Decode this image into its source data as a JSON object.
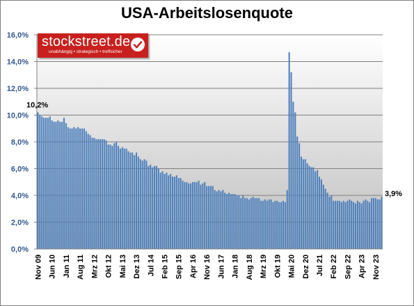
{
  "chart_data": {
    "type": "bar",
    "title": "USA-Arbeitslosenquote",
    "xlabel": "",
    "ylabel": "",
    "ylim": [
      0,
      16
    ],
    "y_ticks": [
      "0,0%",
      "2,0%",
      "4,0%",
      "6,0%",
      "8,0%",
      "10,0%",
      "12,0%",
      "14,0%",
      "16,0%"
    ],
    "grid": true,
    "legend": "none",
    "bar_color": "#4f81bd",
    "x_tick_labels": [
      "Nov 09",
      "Jun 10",
      "Jan 11",
      "Aug 11",
      "Mrz 12",
      "Okt 12",
      "Mai 13",
      "Dez 13",
      "Jul 14",
      "Feb 15",
      "Sep 15",
      "Apr 16",
      "Nov 16",
      "Jun 17",
      "Jan 18",
      "Aug 18",
      "Mrz 19",
      "Okt 19",
      "Mai 20",
      "Dez 20",
      "Jul 21",
      "Feb 22",
      "Sep 22",
      "Apr 23",
      "Nov 23"
    ],
    "series": [
      {
        "start": "2009-11",
        "values": [
          10.2,
          10.0,
          9.9,
          9.8,
          9.8,
          9.8,
          9.9,
          9.6,
          9.5,
          9.5,
          9.6,
          9.5,
          9.5,
          9.8,
          9.4,
          9.1,
          9.0,
          9.0,
          9.1,
          9.0,
          9.1,
          9.0,
          9.0,
          9.0,
          8.8,
          8.6,
          8.5,
          8.3,
          8.3,
          8.2,
          8.2,
          8.2,
          8.2,
          8.2,
          8.1,
          7.8,
          7.8,
          7.7,
          7.9,
          8.0,
          7.7,
          7.5,
          7.6,
          7.5,
          7.5,
          7.3,
          7.2,
          7.2,
          7.0,
          7.2,
          6.9,
          6.7,
          6.6,
          6.7,
          6.6,
          6.2,
          6.3,
          6.1,
          6.2,
          6.2,
          6.0,
          5.7,
          5.8,
          5.6,
          5.7,
          5.5,
          5.6,
          5.4,
          5.4,
          5.5,
          5.3,
          5.3,
          5.1,
          5.0,
          5.0,
          4.9,
          4.9,
          5.0,
          5.0,
          5.0,
          5.1,
          4.8,
          4.9,
          5.0,
          4.7,
          4.7,
          4.7,
          4.7,
          4.4,
          4.3,
          4.4,
          4.3,
          4.4,
          4.2,
          4.1,
          4.2,
          4.1,
          4.1,
          4.1,
          4.0,
          4.0,
          3.8,
          4.0,
          3.8,
          3.8,
          3.7,
          3.8,
          3.9,
          3.8,
          3.8,
          3.8,
          3.6,
          3.6,
          3.7,
          3.6,
          3.7,
          3.7,
          3.5,
          3.6,
          3.6,
          3.5,
          3.5,
          3.6,
          3.5,
          4.4,
          14.7,
          13.2,
          11.0,
          10.2,
          8.4,
          7.9,
          6.9,
          6.7,
          6.7,
          6.4,
          6.2,
          6.1,
          6.1,
          5.8,
          5.9,
          5.4,
          5.2,
          4.8,
          4.5,
          4.2,
          3.9,
          4.0,
          3.6,
          3.6,
          3.6,
          3.6,
          3.5,
          3.6,
          3.5,
          3.6,
          3.7,
          3.6,
          3.5,
          3.4,
          3.6,
          3.5,
          3.4,
          3.6,
          3.7,
          3.6,
          3.5,
          3.8,
          3.8,
          3.8,
          3.7,
          3.7,
          3.9
        ]
      }
    ],
    "annotations": [
      {
        "label": "10,2%",
        "at": "first"
      },
      {
        "label": "3,9%",
        "at": "last"
      }
    ]
  },
  "logo": {
    "name": "stockstreet.de",
    "tagline": "unabhängig • strategisch • treffsicher"
  }
}
